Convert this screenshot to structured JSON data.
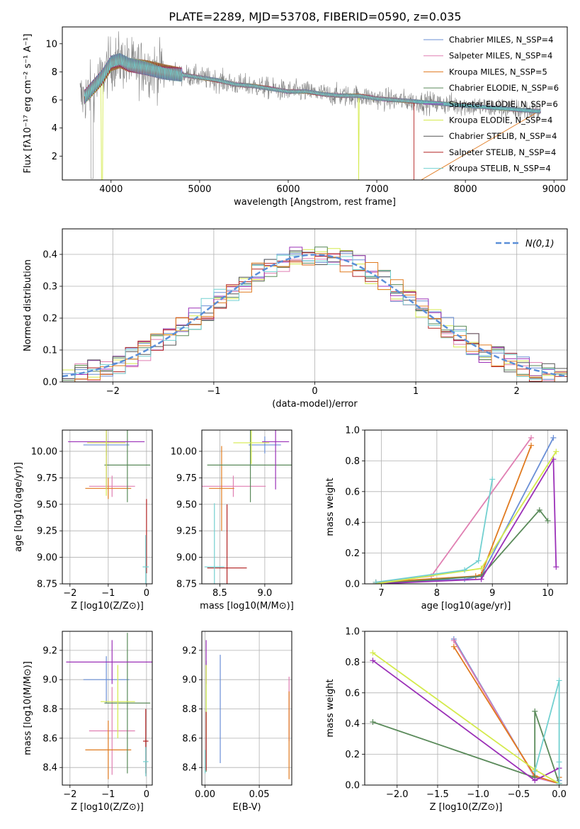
{
  "title": "PLATE=2289, MJD=53708, FIBERID=0590, z=0.035",
  "model_colors": [
    "#6a8fd6",
    "#e07fb2",
    "#e07a1f",
    "#5a8a5a",
    "#9b30b8",
    "#d4ea4c",
    "#555555",
    "#b22222",
    "#72d0d0"
  ],
  "chart_data": [
    {
      "id": "spectrum",
      "type": "line",
      "xlabel": "wavelength [Angstrom, rest frame]",
      "ylabel": "Flux [fλ10⁻¹⁷ erg cm⁻² s⁻¹ A⁻¹]",
      "xlim": [
        3450,
        9150
      ],
      "ylim": [
        0.3,
        11.2
      ],
      "xticks": [
        4000,
        5000,
        6000,
        7000,
        8000,
        9000
      ],
      "yticks": [
        2,
        4,
        6,
        8,
        10
      ],
      "grid": false,
      "legend_position": "top-right",
      "legend": [
        "Chabrier MILES, N_SSP=4",
        "Salpeter MILES, N_SSP=4",
        "Kroupa MILES, N_SSP=5",
        "Chabrier ELODIE, N_SSP=6",
        "Salpeter ELODIE, N_SSP=6",
        "Kroupa ELODIE, N_SSP=4",
        "Chabrier STELIB, N_SSP=4",
        "Salpeter STELIB, N_SSP=4",
        "Kroupa STELIB, N_SSP=4"
      ],
      "model_x": [
        3700,
        3800,
        3900,
        4000,
        4100,
        4200,
        4400,
        4600,
        4800,
        5000,
        5200,
        5400,
        5600,
        5800,
        6000,
        6200,
        6400,
        6600,
        6800,
        7000,
        7200,
        7400,
        7600,
        7800,
        8000,
        8200,
        8400,
        8600,
        8800
      ],
      "model_y": [
        6.2,
        6.9,
        7.6,
        8.6,
        8.8,
        8.5,
        8.3,
        8.0,
        7.8,
        7.6,
        7.4,
        7.1,
        7.0,
        6.8,
        6.6,
        6.6,
        6.4,
        6.3,
        6.3,
        6.1,
        6.0,
        5.9,
        5.8,
        5.7,
        5.6,
        5.5,
        5.4,
        5.3,
        5.2
      ],
      "data_range": [
        3650,
        8850
      ]
    },
    {
      "id": "residuals",
      "type": "histogram",
      "xlabel": "(data-model)/error",
      "ylabel": "Normed distribution",
      "xlim": [
        -2.5,
        2.5
      ],
      "ylim": [
        0,
        0.48
      ],
      "xticks": [
        -2,
        -1,
        0,
        1,
        2
      ],
      "yticks": [
        0.0,
        0.1,
        0.2,
        0.3,
        0.4
      ],
      "grid": true,
      "legend_position": "top-right",
      "legend": [
        "N(0,1)"
      ]
    },
    {
      "id": "age_vs_Z",
      "type": "errorbar",
      "xlabel": "Z [log10(Z/Z⊙)]",
      "ylabel": "age  [log10(age/yr)]",
      "xlim": [
        -2.2,
        0.15
      ],
      "ylim": [
        8.75,
        10.2
      ],
      "xticks": [
        -2,
        -1,
        0
      ],
      "yticks": [
        8.75,
        9.0,
        9.25,
        9.5,
        9.75,
        10.0
      ],
      "grid": true,
      "points": [
        {
          "c": 0,
          "x": -1.05,
          "xerr": 0.6,
          "y": 10.06,
          "yerr": 0.1
        },
        {
          "c": 1,
          "x": -0.9,
          "xerr": 0.6,
          "y": 9.67,
          "yerr": 0.1
        },
        {
          "c": 2,
          "x": -1.0,
          "xerr": 0.6,
          "y": 9.65,
          "yerr": 0.1
        },
        {
          "c": 3,
          "x": -0.5,
          "xerr": 0.6,
          "y": 9.87,
          "yerr": 0.35
        },
        {
          "c": 4,
          "x": -1.05,
          "xerr": 1.0,
          "y": 10.09,
          "yerr": 0.45
        },
        {
          "c": 5,
          "x": -1.05,
          "xerr": 0.5,
          "y": 10.08,
          "yerr": 0.5
        },
        {
          "c": 7,
          "x": 0.0,
          "xerr": 0.0,
          "y": 9.2,
          "yerr": 0.35
        },
        {
          "c": 8,
          "x": -0.02,
          "xerr": 0.08,
          "y": 8.91,
          "yerr": 0.3
        }
      ]
    },
    {
      "id": "age_vs_mass",
      "type": "errorbar",
      "xlabel": "mass [log10(M/M⊙)]",
      "ylabel": "",
      "xlim": [
        8.3,
        9.3
      ],
      "ylim": [
        8.75,
        10.2
      ],
      "xticks": [
        8.5,
        9.0
      ],
      "yticks": [
        8.75,
        9.0,
        9.25,
        9.5,
        9.75,
        10.0
      ],
      "grid": true,
      "points": [
        {
          "c": 0,
          "x": 9.0,
          "xerr": 0.18,
          "y": 10.06,
          "yerr": 0.08
        },
        {
          "c": 1,
          "x": 8.65,
          "xerr": 0.36,
          "y": 9.67,
          "yerr": 0.1
        },
        {
          "c": 2,
          "x": 8.52,
          "xerr": 0.14,
          "y": 9.65,
          "yerr": 0.4
        },
        {
          "c": 3,
          "x": 8.84,
          "xerr": 0.48,
          "y": 9.87,
          "yerr": 0.35
        },
        {
          "c": 4,
          "x": 9.12,
          "xerr": 0.15,
          "y": 10.09,
          "yerr": 0.45
        },
        {
          "c": 5,
          "x": 8.85,
          "xerr": 0.2,
          "y": 10.08,
          "yerr": 0.2
        },
        {
          "c": 7,
          "x": 8.58,
          "xerr": 0.22,
          "y": 8.9,
          "yerr": 0.6
        },
        {
          "c": 8,
          "x": 8.44,
          "xerr": 0.11,
          "y": 8.91,
          "yerr": 0.6
        }
      ]
    },
    {
      "id": "weight_vs_age",
      "type": "line",
      "xlabel": "age  [log10(age/yr)]",
      "ylabel": "mass weight",
      "xlim": [
        6.7,
        10.35
      ],
      "ylim": [
        0,
        1.0
      ],
      "xticks": [
        7,
        8,
        9,
        10
      ],
      "yticks": [
        0.0,
        0.2,
        0.4,
        0.6,
        0.8,
        1.0
      ],
      "grid": true,
      "series": [
        {
          "c": 0,
          "x": [
            6.9,
            8.5,
            8.8,
            10.1
          ],
          "y": [
            0.01,
            0.03,
            0.05,
            0.95
          ]
        },
        {
          "c": 1,
          "x": [
            6.9,
            7.9,
            9.7
          ],
          "y": [
            0.01,
            0.05,
            0.95
          ]
        },
        {
          "c": 2,
          "x": [
            6.9,
            8.7,
            8.8,
            9.7
          ],
          "y": [
            0.01,
            0.05,
            0.06,
            0.9
          ]
        },
        {
          "c": 3,
          "x": [
            6.9,
            8.8,
            9.85,
            10.0
          ],
          "y": [
            0.0,
            0.05,
            0.48,
            0.41
          ]
        },
        {
          "c": 4,
          "x": [
            6.9,
            8.8,
            10.1,
            10.15
          ],
          "y": [
            0.0,
            0.03,
            0.81,
            0.11
          ]
        },
        {
          "c": 5,
          "x": [
            6.9,
            8.8,
            10.15
          ],
          "y": [
            0.0,
            0.1,
            0.86
          ]
        },
        {
          "c": 8,
          "x": [
            6.9,
            8.5,
            8.75,
            9.0
          ],
          "y": [
            0.01,
            0.09,
            0.15,
            0.68
          ]
        }
      ]
    },
    {
      "id": "mass_vs_Z",
      "type": "errorbar",
      "xlabel": "Z [log10(Z/Z⊙)]",
      "ylabel": "mass [log10(M/M⊙)]",
      "xlim": [
        -2.2,
        0.15
      ],
      "ylim": [
        8.28,
        9.33
      ],
      "xticks": [
        -2,
        -1,
        0
      ],
      "yticks": [
        8.4,
        8.6,
        8.8,
        9.0,
        9.2
      ],
      "grid": true,
      "points": [
        {
          "c": 0,
          "x": -1.05,
          "xerr": 0.6,
          "y": 9.0,
          "yerr": 0.16
        },
        {
          "c": 1,
          "x": -0.9,
          "xerr": 0.6,
          "y": 8.65,
          "yerr": 0.3
        },
        {
          "c": 2,
          "x": -1.0,
          "xerr": 0.6,
          "y": 8.52,
          "yerr": 0.2
        },
        {
          "c": 3,
          "x": -0.5,
          "xerr": 0.6,
          "y": 8.84,
          "yerr": 0.48
        },
        {
          "c": 4,
          "x": -0.9,
          "xerr": 1.2,
          "y": 9.12,
          "yerr": 0.15
        },
        {
          "c": 5,
          "x": -0.75,
          "xerr": 0.45,
          "y": 8.85,
          "yerr": 0.25
        },
        {
          "c": 7,
          "x": -0.02,
          "xerr": 0.07,
          "y": 8.58,
          "yerr": 0.22
        },
        {
          "c": 8,
          "x": -0.02,
          "xerr": 0.07,
          "y": 8.44,
          "yerr": 0.1
        }
      ]
    },
    {
      "id": "mass_vs_ebv",
      "type": "errorbar",
      "xlabel": "E(B-V)",
      "ylabel": "",
      "xlim": [
        -0.003,
        0.08
      ],
      "ylim": [
        8.28,
        9.33
      ],
      "xticks": [
        0.0,
        0.05
      ],
      "yticks": [
        8.4,
        8.6,
        8.8,
        9.0,
        9.2
      ],
      "grid": true,
      "points": [
        {
          "c": 0,
          "x": 0.014,
          "xerr": 0,
          "y": 8.8,
          "yerr": 0.37
        },
        {
          "c": 1,
          "x": 0.0775,
          "xerr": 0,
          "y": 8.8,
          "yerr": 0.22
        },
        {
          "c": 2,
          "x": 0.0775,
          "xerr": 0,
          "y": 8.62,
          "yerr": 0.3
        },
        {
          "c": 3,
          "x": 0.001,
          "xerr": 0,
          "y": 8.75,
          "yerr": 0.38
        },
        {
          "c": 4,
          "x": 0.001,
          "xerr": 0,
          "y": 9.12,
          "yerr": 0.15
        },
        {
          "c": 5,
          "x": 0.001,
          "xerr": 0,
          "y": 8.85,
          "yerr": 0.25
        },
        {
          "c": 7,
          "x": 0.001,
          "xerr": 0,
          "y": 8.58,
          "yerr": 0.2
        },
        {
          "c": 8,
          "x": 0.0,
          "xerr": 0,
          "y": 8.44,
          "yerr": 0.08
        }
      ]
    },
    {
      "id": "weight_vs_Z",
      "type": "line",
      "xlabel": "Z [log10(Z/Z⊙)]",
      "ylabel": "mass weight",
      "xlim": [
        -2.4,
        0.1
      ],
      "ylim": [
        0,
        1.0
      ],
      "xticks": [
        -2.0,
        -1.5,
        -1.0,
        -0.5,
        0.0
      ],
      "yticks": [
        0.0,
        0.2,
        0.4,
        0.6,
        0.8,
        1.0
      ],
      "grid": true,
      "series": [
        {
          "c": 0,
          "x": [
            -1.3,
            -0.3,
            0.0,
            0.0
          ],
          "y": [
            0.95,
            0.05,
            0.01,
            0.03
          ]
        },
        {
          "c": 1,
          "x": [
            -1.3,
            -0.3,
            0.0
          ],
          "y": [
            0.94,
            0.05,
            0.01
          ]
        },
        {
          "c": 2,
          "x": [
            -1.3,
            -0.3,
            0.0,
            0.0
          ],
          "y": [
            0.9,
            0.06,
            0.01,
            0.05
          ]
        },
        {
          "c": 3,
          "x": [
            -2.3,
            -0.3,
            -0.3,
            0.0
          ],
          "y": [
            0.41,
            0.05,
            0.48,
            0.01
          ]
        },
        {
          "c": 4,
          "x": [
            -2.3,
            -0.3,
            0.0,
            0.0
          ],
          "y": [
            0.81,
            0.03,
            0.11,
            0.01
          ]
        },
        {
          "c": 5,
          "x": [
            -2.3,
            -0.3,
            0.0
          ],
          "y": [
            0.86,
            0.1,
            0.01
          ]
        },
        {
          "c": 8,
          "x": [
            -0.3,
            0.0,
            0.0,
            0.0
          ],
          "y": [
            0.09,
            0.68,
            0.15,
            0.01
          ]
        }
      ]
    }
  ]
}
